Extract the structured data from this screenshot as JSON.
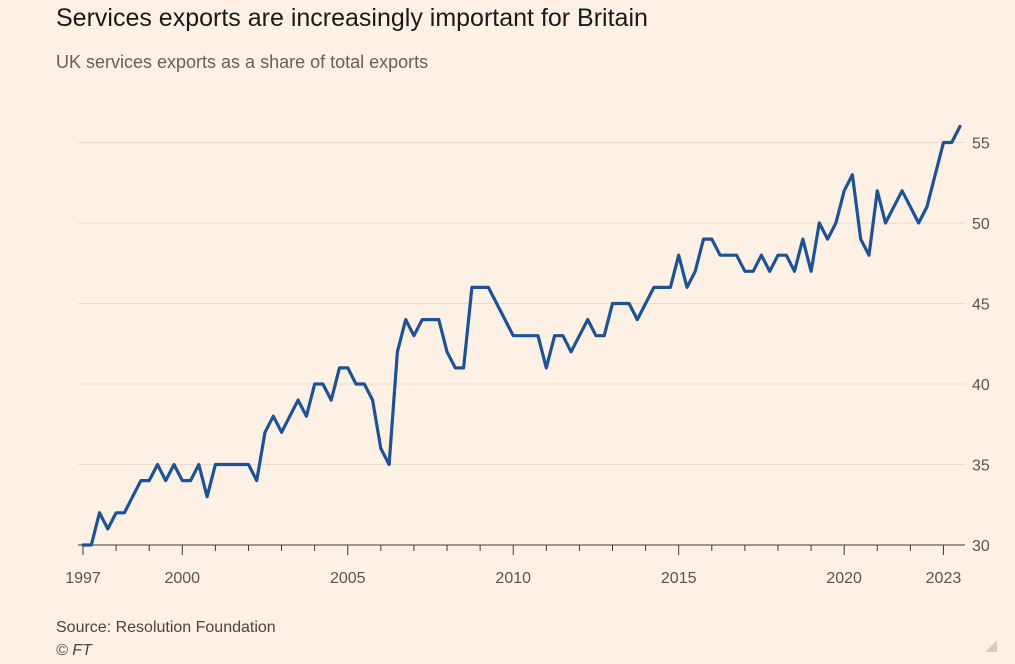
{
  "header": {
    "title": "Services exports are increasingly important for Britain",
    "subtitle": "UK services exports as a share of total exports"
  },
  "footer": {
    "source": "Source: Resolution Foundation",
    "copyright": "© FT"
  },
  "chart_data": {
    "type": "line",
    "title": "Services exports are increasingly important for Britain",
    "subtitle": "UK services exports as a share of total exports",
    "xlabel": "",
    "ylabel": "",
    "ylim": [
      30,
      56
    ],
    "xlim": [
      1997.0,
      2023.5
    ],
    "y_ticks": [
      30,
      35,
      40,
      45,
      50,
      55
    ],
    "y_tick_labels": [
      "30",
      "35",
      "40",
      "45",
      "50",
      "55"
    ],
    "x_ticks": [
      1997,
      2000,
      2005,
      2010,
      2015,
      2020,
      2023
    ],
    "x_tick_labels": [
      "1997",
      "2000",
      "2005",
      "2010",
      "2015",
      "2020",
      "2023"
    ],
    "y_axis_position": "right",
    "grid": true,
    "colors": {
      "series": "#1f5295",
      "background": "#fdf1e5",
      "grid": "#e8dcd0"
    },
    "series": [
      {
        "x": [
          1997.0,
          1997.25,
          1997.5,
          1997.75,
          1998.0,
          1998.25,
          1998.5,
          1998.75,
          1999.0,
          1999.25,
          1999.5,
          1999.75,
          2000.0,
          2000.25,
          2000.5,
          2000.75,
          2001.0,
          2001.25,
          2001.5,
          2001.75,
          2002.0,
          2002.25,
          2002.5,
          2002.75,
          2003.0,
          2003.25,
          2003.5,
          2003.75,
          2004.0,
          2004.25,
          2004.5,
          2004.75,
          2005.0,
          2005.25,
          2005.5,
          2005.75,
          2006.0,
          2006.25,
          2006.5,
          2006.75,
          2007.0,
          2007.25,
          2007.5,
          2007.75,
          2008.0,
          2008.25,
          2008.5,
          2008.75,
          2009.0,
          2009.25,
          2009.5,
          2009.75,
          2010.0,
          2010.25,
          2010.5,
          2010.75,
          2011.0,
          2011.25,
          2011.5,
          2011.75,
          2012.0,
          2012.25,
          2012.5,
          2012.75,
          2013.0,
          2013.25,
          2013.5,
          2013.75,
          2014.0,
          2014.25,
          2014.5,
          2014.75,
          2015.0,
          2015.25,
          2015.5,
          2015.75,
          2016.0,
          2016.25,
          2016.5,
          2016.75,
          2017.0,
          2017.25,
          2017.5,
          2017.75,
          2018.0,
          2018.25,
          2018.5,
          2018.75,
          2019.0,
          2019.25,
          2019.5,
          2019.75,
          2020.0,
          2020.25,
          2020.5,
          2020.75,
          2021.0,
          2021.25,
          2021.5,
          2021.75,
          2022.0,
          2022.25,
          2022.5,
          2022.75,
          2023.0,
          2023.25,
          2023.5
        ],
        "values": [
          30,
          30,
          32,
          31,
          32,
          32,
          33,
          34,
          34,
          35,
          34,
          35,
          34,
          34,
          35,
          33,
          35,
          35,
          35,
          35,
          35,
          34,
          37,
          38,
          37,
          38,
          39,
          38,
          40,
          40,
          39,
          41,
          41,
          40,
          40,
          39,
          36,
          35,
          42,
          44,
          43,
          44,
          44,
          44,
          42,
          41,
          41,
          46,
          46,
          46,
          45,
          44,
          43,
          43,
          43,
          43,
          41,
          43,
          43,
          42,
          43,
          44,
          43,
          43,
          45,
          45,
          45,
          44,
          45,
          46,
          46,
          46,
          48,
          46,
          47,
          49,
          49,
          48,
          48,
          48,
          47,
          47,
          48,
          47,
          48,
          48,
          47,
          49,
          47,
          50,
          49,
          50,
          52,
          53,
          49,
          48,
          52,
          50,
          51,
          52,
          51,
          50,
          51,
          53,
          55,
          55,
          56
        ]
      }
    ]
  }
}
